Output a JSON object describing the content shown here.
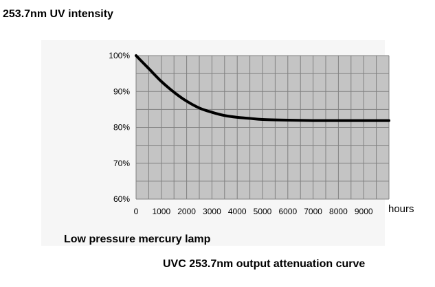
{
  "chart_data": {
    "type": "line",
    "title": "253.7nm UV intensity",
    "subtitle": "Low pressure mercury lamp",
    "caption": "UVC 253.7nm output attenuation curve",
    "xlabel": "hours",
    "ylabel": "",
    "xlim": [
      0,
      10000
    ],
    "ylim": [
      60,
      100
    ],
    "grid": true,
    "x_ticks": [
      "0",
      "1000",
      "2000",
      "3000",
      "4000",
      "5000",
      "6000",
      "7000",
      "8000",
      "9000"
    ],
    "y_ticks": [
      "100%",
      "90%",
      "80%",
      "70%",
      "60%"
    ],
    "series": [
      {
        "x": [
          0,
          500,
          1000,
          1500,
          2000,
          2500,
          3000,
          3500,
          4000,
          4500,
          5000,
          6000,
          7000,
          8000,
          9000,
          10000
        ],
        "values": [
          100,
          96.4,
          92.8,
          89.8,
          87.3,
          85.4,
          84.2,
          83.3,
          82.8,
          82.5,
          82.2,
          82.0,
          81.9,
          81.9,
          81.9,
          81.9
        ]
      }
    ],
    "colors": {
      "plot_bg": "#c4c4c4",
      "grid": "#808080",
      "line": "#000000"
    }
  }
}
